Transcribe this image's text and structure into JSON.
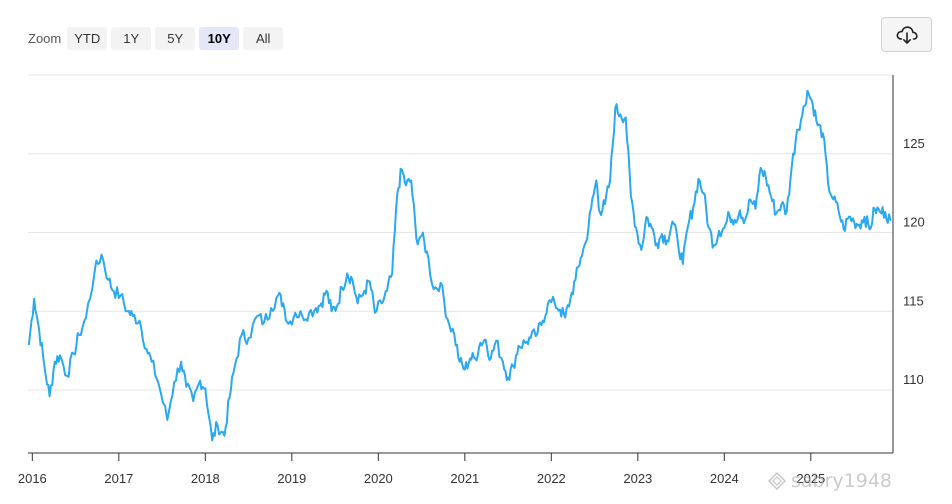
{
  "toolbar": {
    "zoom_label": "Zoom",
    "zoom_options": [
      "YTD",
      "1Y",
      "5Y",
      "10Y",
      "All"
    ],
    "active_zoom": "10Y",
    "download_icon": "cloud-download-icon"
  },
  "watermark": {
    "text": "sabry1948"
  },
  "chart_data": {
    "type": "line",
    "title": "",
    "xlabel": "",
    "ylabel": "",
    "x_ticks": [
      "2016",
      "2017",
      "2018",
      "2019",
      "2020",
      "2021",
      "2022",
      "2023",
      "2024",
      "2025"
    ],
    "y_ticks": [
      110,
      115,
      120,
      125
    ],
    "xlim": [
      2015.95,
      2025.95
    ],
    "ylim": [
      106,
      130
    ],
    "y_axis_position": "right",
    "grid": "horizontal",
    "line_color": "#2aa8f0",
    "series": [
      {
        "points": [
          [
            2015.96,
            112.9
          ],
          [
            2016.02,
            115.8
          ],
          [
            2016.08,
            113.8
          ],
          [
            2016.14,
            111.5
          ],
          [
            2016.2,
            109.6
          ],
          [
            2016.26,
            111.8
          ],
          [
            2016.32,
            112.2
          ],
          [
            2016.4,
            110.9
          ],
          [
            2016.48,
            112.3
          ],
          [
            2016.54,
            113.5
          ],
          [
            2016.62,
            114.6
          ],
          [
            2016.72,
            117.5
          ],
          [
            2016.8,
            118.6
          ],
          [
            2016.88,
            117.0
          ],
          [
            2016.94,
            116.3
          ],
          [
            2017.02,
            116.0
          ],
          [
            2017.1,
            115.0
          ],
          [
            2017.16,
            114.7
          ],
          [
            2017.24,
            114.4
          ],
          [
            2017.32,
            112.6
          ],
          [
            2017.38,
            111.8
          ],
          [
            2017.46,
            110.4
          ],
          [
            2017.56,
            108.1
          ],
          [
            2017.64,
            110.5
          ],
          [
            2017.72,
            111.8
          ],
          [
            2017.78,
            110.2
          ],
          [
            2017.86,
            109.3
          ],
          [
            2017.94,
            110.6
          ],
          [
            2018.0,
            110.1
          ],
          [
            2018.08,
            106.8
          ],
          [
            2018.14,
            107.8
          ],
          [
            2018.22,
            107.1
          ],
          [
            2018.28,
            109.5
          ],
          [
            2018.34,
            111.5
          ],
          [
            2018.42,
            113.5
          ],
          [
            2018.5,
            113.3
          ],
          [
            2018.6,
            114.7
          ],
          [
            2018.68,
            114.3
          ],
          [
            2018.76,
            115.2
          ],
          [
            2018.84,
            116.0
          ],
          [
            2018.9,
            115.5
          ],
          [
            2018.96,
            114.2
          ],
          [
            2019.04,
            114.9
          ],
          [
            2019.12,
            114.7
          ],
          [
            2019.2,
            114.9
          ],
          [
            2019.28,
            115.2
          ],
          [
            2019.34,
            115.5
          ],
          [
            2019.4,
            116.3
          ],
          [
            2019.46,
            115.0
          ],
          [
            2019.52,
            115.3
          ],
          [
            2019.58,
            116.5
          ],
          [
            2019.64,
            117.4
          ],
          [
            2019.7,
            117.0
          ],
          [
            2019.76,
            115.5
          ],
          [
            2019.84,
            116.3
          ],
          [
            2019.9,
            116.9
          ],
          [
            2019.96,
            114.9
          ],
          [
            2020.04,
            115.5
          ],
          [
            2020.1,
            116.3
          ],
          [
            2020.16,
            117.4
          ],
          [
            2020.22,
            122.5
          ],
          [
            2020.27,
            124.0
          ],
          [
            2020.32,
            123.0
          ],
          [
            2020.38,
            123.3
          ],
          [
            2020.44,
            119.6
          ],
          [
            2020.5,
            119.8
          ],
          [
            2020.56,
            118.8
          ],
          [
            2020.64,
            116.4
          ],
          [
            2020.72,
            116.8
          ],
          [
            2020.8,
            114.5
          ],
          [
            2020.88,
            113.5
          ],
          [
            2020.94,
            111.8
          ],
          [
            2021.0,
            111.3
          ],
          [
            2021.06,
            112.0
          ],
          [
            2021.12,
            112.0
          ],
          [
            2021.18,
            113.0
          ],
          [
            2021.24,
            113.2
          ],
          [
            2021.3,
            112.0
          ],
          [
            2021.36,
            113.1
          ],
          [
            2021.44,
            111.8
          ],
          [
            2021.5,
            110.8
          ],
          [
            2021.56,
            111.5
          ],
          [
            2021.62,
            112.8
          ],
          [
            2021.7,
            113.0
          ],
          [
            2021.76,
            113.3
          ],
          [
            2021.84,
            113.6
          ],
          [
            2021.9,
            114.4
          ],
          [
            2021.96,
            115.5
          ],
          [
            2022.04,
            115.5
          ],
          [
            2022.1,
            115.1
          ],
          [
            2022.16,
            114.6
          ],
          [
            2022.22,
            115.8
          ],
          [
            2022.28,
            117.0
          ],
          [
            2022.34,
            118.4
          ],
          [
            2022.4,
            119.4
          ],
          [
            2022.46,
            121.5
          ],
          [
            2022.52,
            123.3
          ],
          [
            2022.56,
            121.3
          ],
          [
            2022.62,
            121.8
          ],
          [
            2022.68,
            123.3
          ],
          [
            2022.74,
            127.9
          ],
          [
            2022.8,
            127.5
          ],
          [
            2022.86,
            127.3
          ],
          [
            2022.92,
            122.3
          ],
          [
            2022.98,
            120.3
          ],
          [
            2023.04,
            118.9
          ],
          [
            2023.1,
            121.0
          ],
          [
            2023.16,
            120.3
          ],
          [
            2023.22,
            119.3
          ],
          [
            2023.28,
            119.9
          ],
          [
            2023.34,
            119.5
          ],
          [
            2023.4,
            120.7
          ],
          [
            2023.46,
            119.5
          ],
          [
            2023.52,
            118.0
          ],
          [
            2023.58,
            120.4
          ],
          [
            2023.64,
            121.6
          ],
          [
            2023.7,
            123.4
          ],
          [
            2023.76,
            122.5
          ],
          [
            2023.82,
            120.3
          ],
          [
            2023.88,
            119.2
          ],
          [
            2023.94,
            120.1
          ],
          [
            2024.0,
            120.3
          ],
          [
            2024.06,
            121.1
          ],
          [
            2024.12,
            120.8
          ],
          [
            2024.18,
            121.4
          ],
          [
            2024.24,
            120.8
          ],
          [
            2024.3,
            122.1
          ],
          [
            2024.36,
            121.5
          ],
          [
            2024.42,
            124.1
          ],
          [
            2024.48,
            123.5
          ],
          [
            2024.54,
            122.3
          ],
          [
            2024.6,
            121.2
          ],
          [
            2024.66,
            121.8
          ],
          [
            2024.72,
            121.3
          ],
          [
            2024.78,
            124.2
          ],
          [
            2024.84,
            126.5
          ],
          [
            2024.9,
            127.4
          ],
          [
            2024.96,
            129.0
          ],
          [
            2025.02,
            128.2
          ],
          [
            2025.08,
            126.8
          ],
          [
            2025.14,
            126.3
          ],
          [
            2025.2,
            123.1
          ],
          [
            2025.26,
            122.1
          ],
          [
            2025.32,
            121.4
          ],
          [
            2025.38,
            120.2
          ],
          [
            2025.44,
            121.0
          ],
          [
            2025.5,
            120.7
          ],
          [
            2025.56,
            120.5
          ],
          [
            2025.62,
            121.0
          ],
          [
            2025.68,
            120.2
          ],
          [
            2025.74,
            121.5
          ],
          [
            2025.8,
            121.3
          ],
          [
            2025.86,
            121.3
          ],
          [
            2025.92,
            120.8
          ]
        ]
      }
    ]
  }
}
